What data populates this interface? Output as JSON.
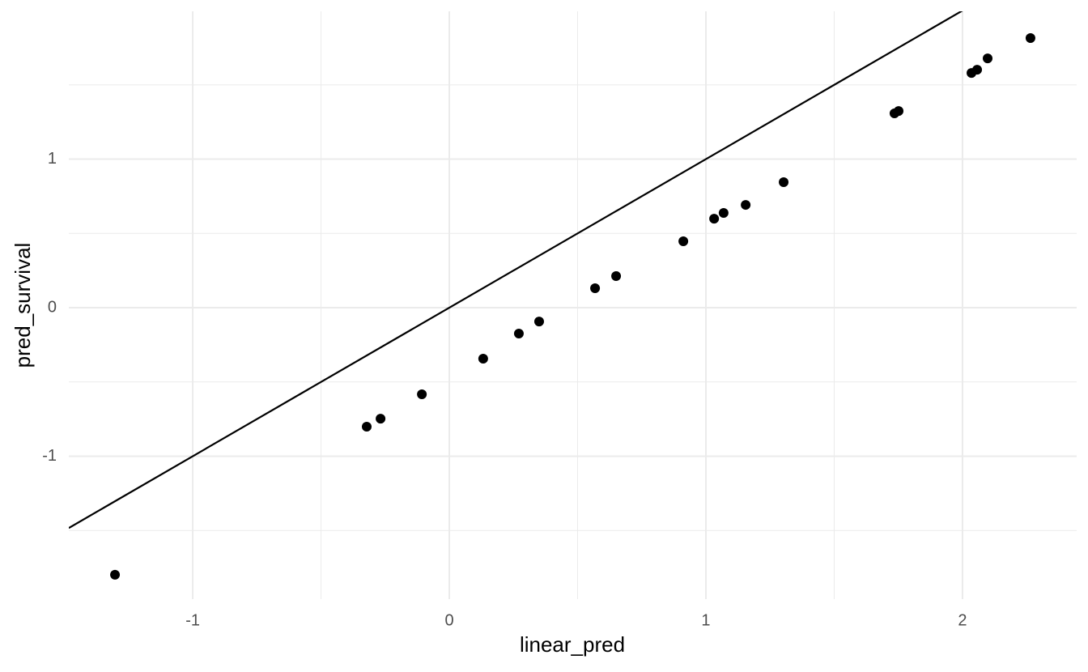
{
  "chart_data": {
    "type": "scatter",
    "x_label": "linear_pred",
    "y_label": "pred_survival",
    "x": [
      -1.303,
      -0.322,
      -0.268,
      -0.107,
      0.132,
      0.271,
      0.35,
      0.568,
      0.65,
      0.912,
      1.032,
      1.069,
      1.155,
      1.303,
      1.735,
      1.751,
      2.035,
      2.057,
      2.098,
      2.265
    ],
    "values": [
      -1.798,
      -0.801,
      -0.747,
      -0.583,
      -0.343,
      -0.174,
      -0.093,
      0.131,
      0.213,
      0.447,
      0.599,
      0.638,
      0.692,
      0.845,
      1.308,
      1.324,
      1.58,
      1.602,
      1.678,
      1.815
    ],
    "color": "#000000",
    "abline": {
      "intercept": 0,
      "slope": 1
    },
    "xlim": [
      -1.483,
      2.445
    ],
    "ylim": [
      -1.962,
      1.995
    ],
    "xticks": [
      -1,
      0,
      1,
      2
    ],
    "yticks": [
      -1,
      0,
      1
    ],
    "x_minor_grid": [
      -0.5,
      0.5,
      1.5
    ],
    "y_minor_grid": [
      -1.5,
      -0.5,
      0.5,
      1.5
    ],
    "grid": true
  }
}
